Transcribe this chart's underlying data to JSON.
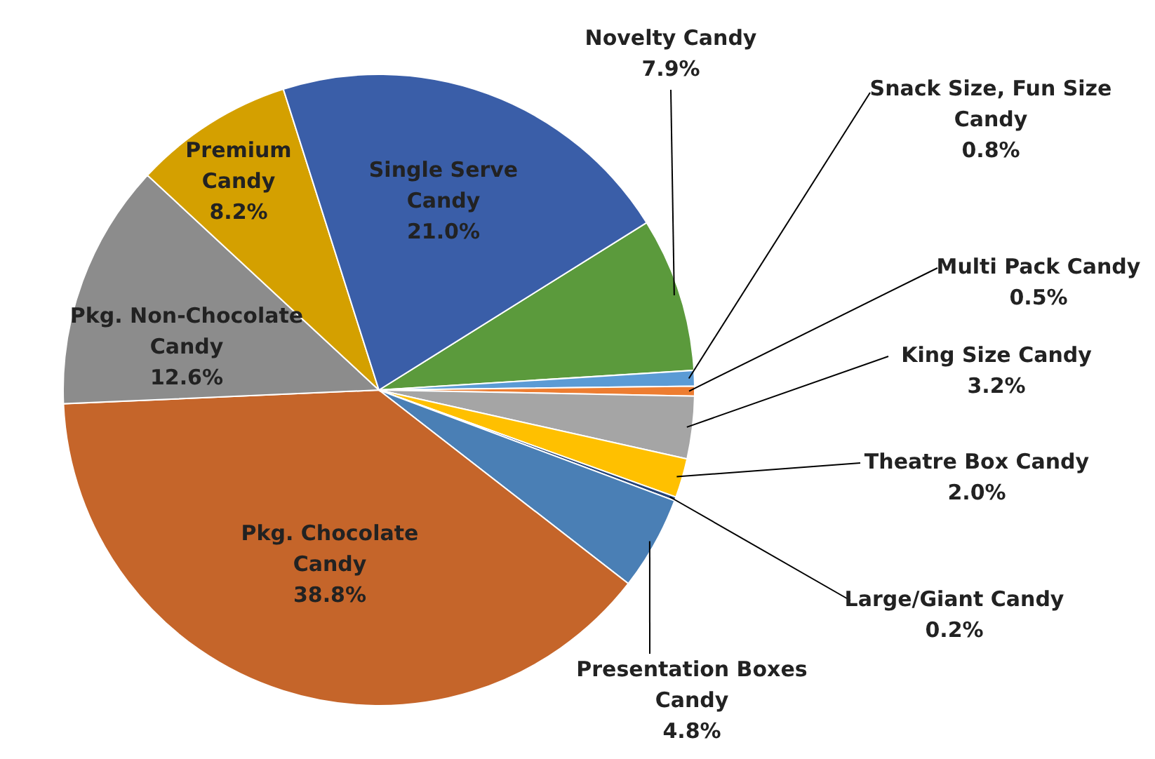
{
  "chart_data": {
    "type": "pie",
    "categories": [
      "Novelty Candy",
      "Snack Size, Fun Size Candy",
      "Multi Pack Candy",
      "King Size Candy",
      "Theatre Box Candy",
      "Large/Giant Candy",
      "Presentation Boxes Candy",
      "Pkg. Chocolate Candy",
      "Pkg. Non-Chocolate Candy",
      "Premium Candy",
      "Single Serve Candy"
    ],
    "values": [
      7.9,
      0.8,
      0.5,
      3.2,
      2.0,
      0.2,
      4.8,
      38.8,
      12.6,
      8.2,
      21.0
    ],
    "value_labels": [
      "7.9%",
      "0.8%",
      "0.5%",
      "3.2%",
      "2.0%",
      "0.2%",
      "4.8%",
      "38.8%",
      "12.6%",
      "8.2%",
      "21.0%"
    ],
    "colors": [
      "#5b9a3c",
      "#5b9bd5",
      "#ed7d31",
      "#a5a5a5",
      "#ffc000",
      "#264478",
      "#4a7fb5",
      "#c5652a",
      "#8c8c8c",
      "#d4a000",
      "#3a5ea8"
    ]
  }
}
